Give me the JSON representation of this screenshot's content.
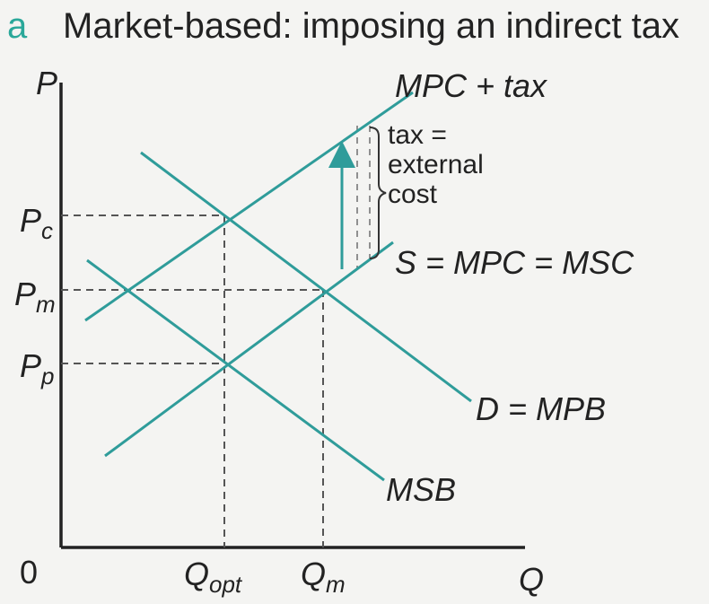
{
  "figure": {
    "panel_letter": "a",
    "title": "Market-based: imposing an indirect tax"
  },
  "axes": {
    "y_label": "P",
    "x_label": "Q",
    "origin_label": "0"
  },
  "curves": {
    "mpc_tax": "MPC + tax",
    "supply": "S = MPC = MSC",
    "demand": "D = MPB",
    "msb": "MSB"
  },
  "prices": {
    "pc": {
      "base": "P",
      "sub": "c"
    },
    "pm": {
      "base": "P",
      "sub": "m"
    },
    "pp": {
      "base": "P",
      "sub": "p"
    }
  },
  "quantities": {
    "qopt": {
      "base": "Q",
      "sub": "opt"
    },
    "qm": {
      "base": "Q",
      "sub": "m"
    }
  },
  "annotation": {
    "line1": "tax =",
    "line2": "external",
    "line3": "cost"
  },
  "colors": {
    "curve": "#2f9c9a",
    "panel_letter": "#2aa89a",
    "text": "#222222"
  }
}
